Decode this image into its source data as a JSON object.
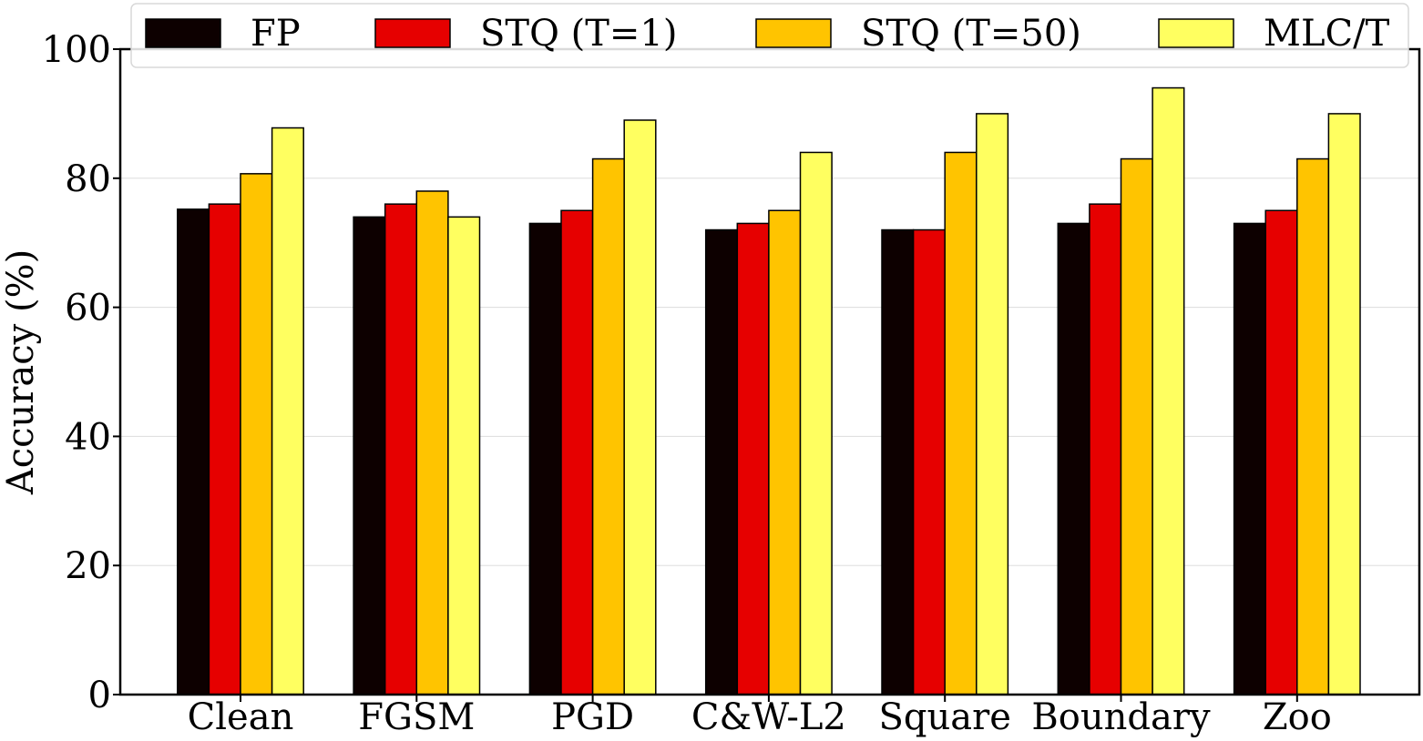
{
  "chart_data": {
    "type": "bar",
    "title": "",
    "xlabel": "",
    "ylabel": "Accuracy (%)",
    "ylim": [
      0,
      100
    ],
    "yticks": [
      0,
      20,
      40,
      60,
      80,
      100
    ],
    "grid": true,
    "legend_position": "top",
    "categories": [
      "Clean",
      "FGSM",
      "PGD",
      "C&W-L2",
      "Square",
      "Boundary",
      "Zoo"
    ],
    "series": [
      {
        "name": "FP",
        "color": "#0d0000",
        "values": [
          75.2,
          74,
          73,
          72,
          72,
          73,
          73
        ]
      },
      {
        "name": "STQ (T=1)",
        "color": "#e60000",
        "values": [
          76,
          76,
          75,
          73,
          72,
          76,
          75
        ]
      },
      {
        "name": "STQ (T=50)",
        "color": "#ffc400",
        "values": [
          80.7,
          78,
          83,
          75,
          84,
          83,
          83
        ]
      },
      {
        "name": "MLC/T",
        "color": "#ffff60",
        "values": [
          87.8,
          74,
          89,
          84,
          90,
          94,
          90
        ]
      }
    ]
  }
}
